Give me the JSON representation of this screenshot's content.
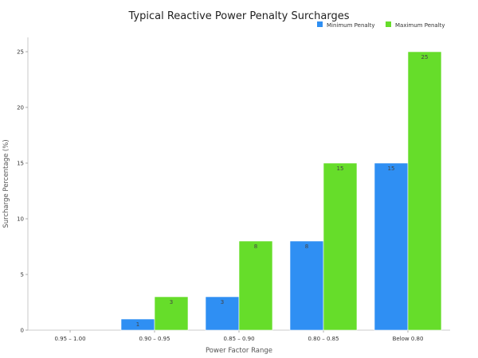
{
  "chart_data": {
    "type": "bar",
    "title": "Typical Reactive Power Penalty Surcharges",
    "xlabel": "Power Factor Range",
    "ylabel": "Surcharge Percentage (%)",
    "categories": [
      "0.95 – 1.00",
      "0.90 – 0.95",
      "0.85 – 0.90",
      "0.80 – 0.85",
      "Below 0.80"
    ],
    "series": [
      {
        "name": "Minimum Penalty",
        "values": [
          0,
          1,
          3,
          8,
          15
        ],
        "labels": [
          "",
          "1",
          "3",
          "8",
          "15"
        ],
        "color": "#2f8ff3"
      },
      {
        "name": "Maximum Penalty",
        "values": [
          0,
          3,
          8,
          15,
          25
        ],
        "labels": [
          "",
          "3",
          "8",
          "15",
          "25"
        ],
        "color": "#66dd2a"
      }
    ],
    "ylim": [
      0,
      25
    ],
    "yticks": [
      0,
      5,
      10,
      15,
      20,
      25
    ],
    "ytick_labels": [
      "0",
      "5",
      "10",
      "15",
      "20",
      "25"
    ],
    "grid": false,
    "legend_position": "top-right"
  }
}
